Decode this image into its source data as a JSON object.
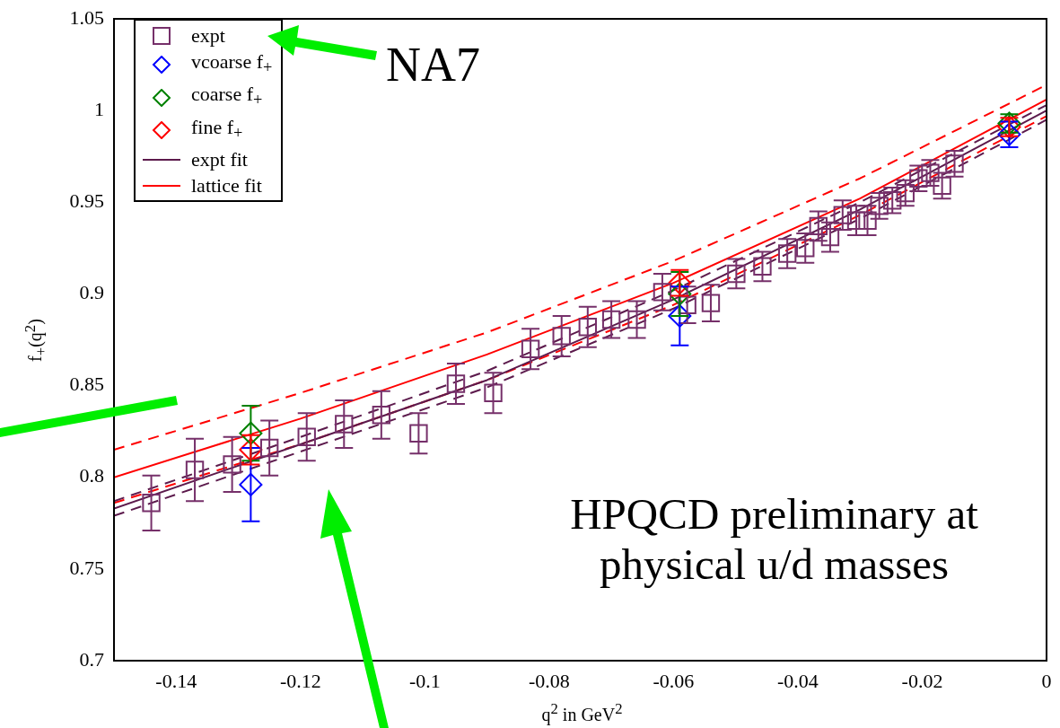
{
  "chart_data": {
    "type": "scatter",
    "xlabel": "q$^{2}$ in GeV$^{2}$",
    "ylabel": "f$_{+}$(q$^{2}$)",
    "xlim": [
      -0.15,
      0
    ],
    "xticks": [
      -0.14,
      -0.12,
      -0.1,
      -0.08,
      -0.06,
      -0.04,
      -0.02,
      0
    ],
    "ylim": [
      0.7,
      1.05
    ],
    "yticks": [
      0.7,
      0.75,
      0.8,
      0.85,
      0.9,
      0.95,
      1,
      1.05
    ],
    "grid": false,
    "legend": "top left",
    "annotations": [
      "NA7",
      "HPQCD preliminary at physical u/d masses"
    ],
    "series": [
      {
        "name": "expt",
        "type": "scatter",
        "marker": "square",
        "color": "#76306a",
        "x": [
          -0.144,
          -0.137,
          -0.131,
          -0.125,
          -0.119,
          -0.113,
          -0.107,
          -0.101,
          -0.095,
          -0.089,
          -0.083,
          -0.078,
          -0.0738,
          -0.07,
          -0.0659,
          -0.0618,
          -0.0578,
          -0.054,
          -0.0499,
          -0.0457,
          -0.0417,
          -0.0388,
          -0.0367,
          -0.0348,
          -0.0328,
          -0.0306,
          -0.0288,
          -0.0269,
          -0.0248,
          -0.0227,
          -0.0206,
          -0.0187,
          -0.0168,
          -0.0148
        ],
        "values": [
          0.786,
          0.804,
          0.807,
          0.816,
          0.822,
          0.829,
          0.834,
          0.824,
          0.851,
          0.846,
          0.87,
          0.877,
          0.882,
          0.886,
          0.886,
          0.901,
          0.894,
          0.895,
          0.911,
          0.915,
          0.922,
          0.925,
          0.937,
          0.931,
          0.943,
          0.94,
          0.94,
          0.948,
          0.951,
          0.955,
          0.963,
          0.966,
          0.959,
          0.971
        ],
        "errors": [
          0.015,
          0.017,
          0.015,
          0.015,
          0.013,
          0.013,
          0.013,
          0.011,
          0.011,
          0.011,
          0.011,
          0.011,
          0.011,
          0.01,
          0.01,
          0.01,
          0.01,
          0.01,
          0.008,
          0.008,
          0.008,
          0.008,
          0.008,
          0.008,
          0.008,
          0.008,
          0.008,
          0.007,
          0.007,
          0.007,
          0.007,
          0.007,
          0.007,
          0.007
        ]
      },
      {
        "name": "vcoarse f$_{+}$",
        "type": "scatter",
        "marker": "diamond",
        "color": "#0000ff",
        "x": [
          -0.128,
          -0.059,
          -0.006
        ],
        "values": [
          0.796,
          0.888,
          0.987
        ],
        "errors": [
          0.02,
          0.016,
          0.007
        ]
      },
      {
        "name": "coarse f$_{+}$",
        "type": "scatter",
        "marker": "diamond",
        "color": "#008000",
        "x": [
          -0.128,
          -0.059,
          -0.006
        ],
        "values": [
          0.824,
          0.9,
          0.993
        ],
        "errors": [
          0.015,
          0.012,
          0.005
        ]
      },
      {
        "name": "fine f$_{+}$",
        "type": "scatter",
        "marker": "diamond",
        "color": "#ff0000",
        "x": [
          -0.128,
          -0.059,
          -0.006
        ],
        "values": [
          0.815,
          0.906,
          0.991
        ],
        "errors": [
          0.008,
          0.007,
          0.005
        ]
      },
      {
        "name": "expt fit",
        "type": "line",
        "marker": "none",
        "line_style": "solid",
        "color": "#5c1a4c",
        "x": [
          -0.15,
          -0.12,
          -0.09,
          -0.06,
          -0.03,
          0
        ],
        "values": [
          0.783,
          0.818,
          0.853,
          0.897,
          0.946,
          1.0
        ]
      },
      {
        "name": "lattice fit",
        "type": "line",
        "marker": "none",
        "line_style": "solid",
        "color": "#ff0000",
        "x": [
          -0.15,
          -0.12,
          -0.09,
          -0.06,
          -0.03,
          0
        ],
        "values": [
          0.8,
          0.832,
          0.867,
          0.906,
          0.952,
          1.006
        ]
      },
      {
        "type": "line",
        "marker": "none",
        "line_style": "dashed",
        "color": "#5c1a4c",
        "x": [
          -0.15,
          -0.12,
          -0.09,
          -0.06,
          -0.03,
          0
        ],
        "values": [
          0.787,
          0.822,
          0.858,
          0.902,
          0.95,
          1.003
        ]
      },
      {
        "type": "line",
        "marker": "none",
        "line_style": "dashed",
        "color": "#5c1a4c",
        "x": [
          -0.15,
          -0.12,
          -0.09,
          -0.06,
          -0.03,
          0
        ],
        "values": [
          0.779,
          0.814,
          0.849,
          0.892,
          0.941,
          0.995
        ]
      },
      {
        "type": "line",
        "marker": "none",
        "line_style": "dashed",
        "color": "#ff0000",
        "x": [
          -0.15,
          -0.12,
          -0.09,
          -0.06,
          -0.03,
          0
        ],
        "values": [
          0.815,
          0.846,
          0.879,
          0.918,
          0.963,
          1.014
        ]
      },
      {
        "type": "line",
        "marker": "none",
        "line_style": "dashed",
        "color": "#ff0000",
        "x": [
          -0.15,
          -0.12,
          -0.09,
          -0.06,
          -0.03,
          0
        ],
        "values": [
          0.786,
          0.818,
          0.853,
          0.894,
          0.943,
          0.997
        ]
      }
    ]
  }
}
